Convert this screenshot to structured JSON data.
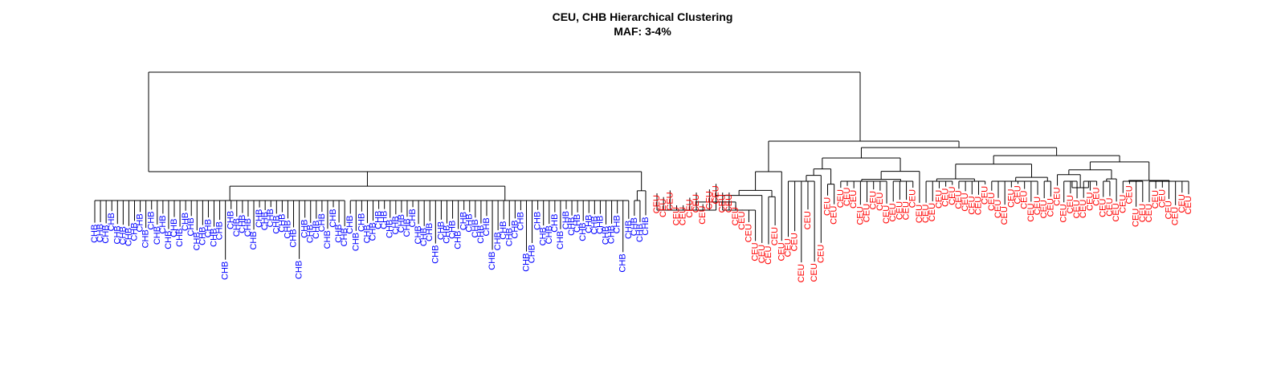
{
  "chart_data": {
    "type": "dendrogram",
    "title": "CEU, CHB Hierarchical Clustering",
    "subtitle": "MAF: 3-4%",
    "groups": [
      {
        "name": "CHB",
        "color": "#0000ff",
        "leaf_count": 98
      },
      {
        "name": "CEU",
        "color": "#ff0000",
        "leaf_count": 82
      }
    ],
    "leaf_order": [
      "CHB×98",
      "CEU×82"
    ],
    "axes": "none",
    "grid": false,
    "legend": "none"
  }
}
